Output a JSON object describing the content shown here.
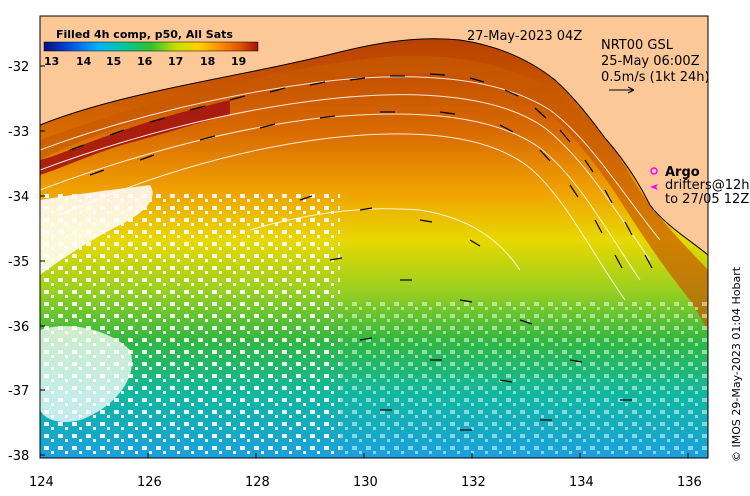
{
  "header": {
    "date": "27-May-2023 04Z",
    "colorbar_title": "Filled 4h comp, p50, All Sats"
  },
  "colorbar": {
    "ticks": [
      "13",
      "14",
      "15",
      "16",
      "17",
      "18",
      "19"
    ],
    "colors": [
      "#0a0a80",
      "#0050e0",
      "#00b0ff",
      "#00c8a0",
      "#30c030",
      "#c8e000",
      "#ffd000",
      "#ff9000",
      "#e05000",
      "#a01010"
    ]
  },
  "legend": {
    "line1": "NRT00 GSL",
    "line2": "25-May 06:00Z",
    "line3": "0.5m/s (1kt 24h)",
    "argo": "Argo",
    "drifters1": "drifters@12h",
    "drifters2": "to 27/05 12Z"
  },
  "axes": {
    "lon_ticks": [
      "124",
      "126",
      "128",
      "130",
      "132",
      "134",
      "136"
    ],
    "lat_ticks": [
      "-32",
      "-33",
      "-34",
      "-35",
      "-36",
      "-37",
      "-38"
    ]
  },
  "credit": "© IMOS 29-May-2023 01:04 Hobart",
  "colors": {
    "land": "#fcc898",
    "warm": "#b84000",
    "cool": "#1aa0e0"
  }
}
